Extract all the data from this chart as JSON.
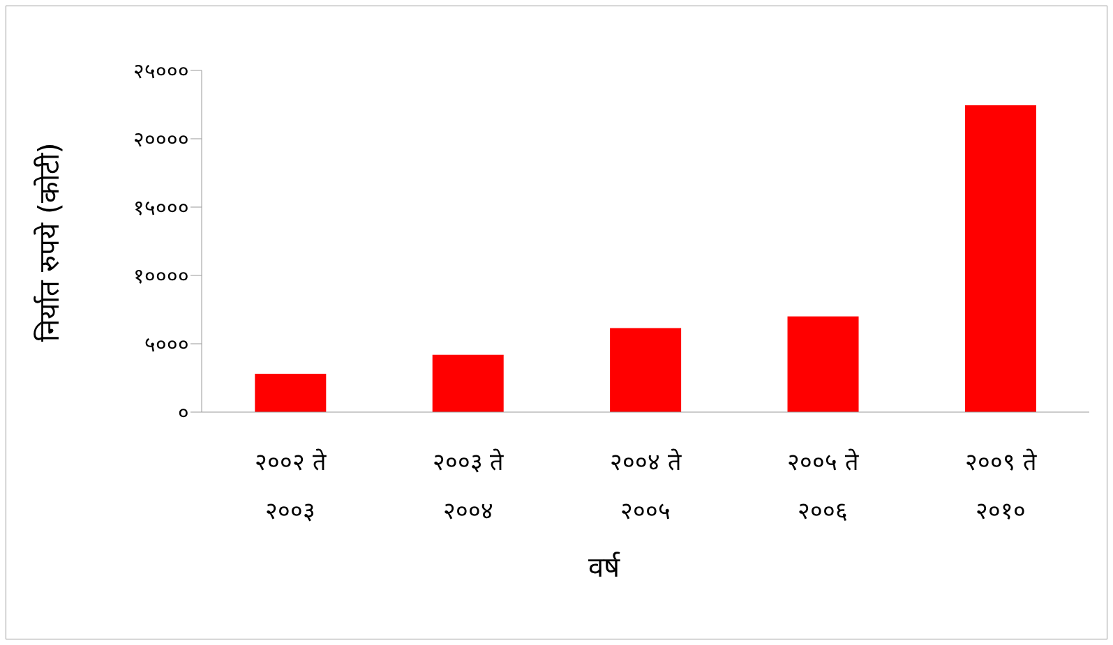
{
  "chart_data": {
    "type": "bar",
    "xlabel": "वर्ष",
    "ylabel": "निर्यात रुपये (कोटी)",
    "categories": [
      "२००२ ते २००३",
      "२००३ ते २००४",
      "२००४ ते २००५",
      "२००५ ते २००६",
      "२००९ ते २०१०"
    ],
    "values": [
      2800,
      4200,
      6150,
      7000,
      22450
    ],
    "color": "#ff0000",
    "ylim": [
      0,
      25000
    ],
    "yticks": [
      {
        "value": 0,
        "label": "०"
      },
      {
        "value": 5000,
        "label": "५०००"
      },
      {
        "value": 10000,
        "label": "१००००"
      },
      {
        "value": 15000,
        "label": "१५०००"
      },
      {
        "value": 20000,
        "label": "२००००"
      },
      {
        "value": 25000,
        "label": "२५०००"
      }
    ],
    "grid": false,
    "legend": false
  }
}
